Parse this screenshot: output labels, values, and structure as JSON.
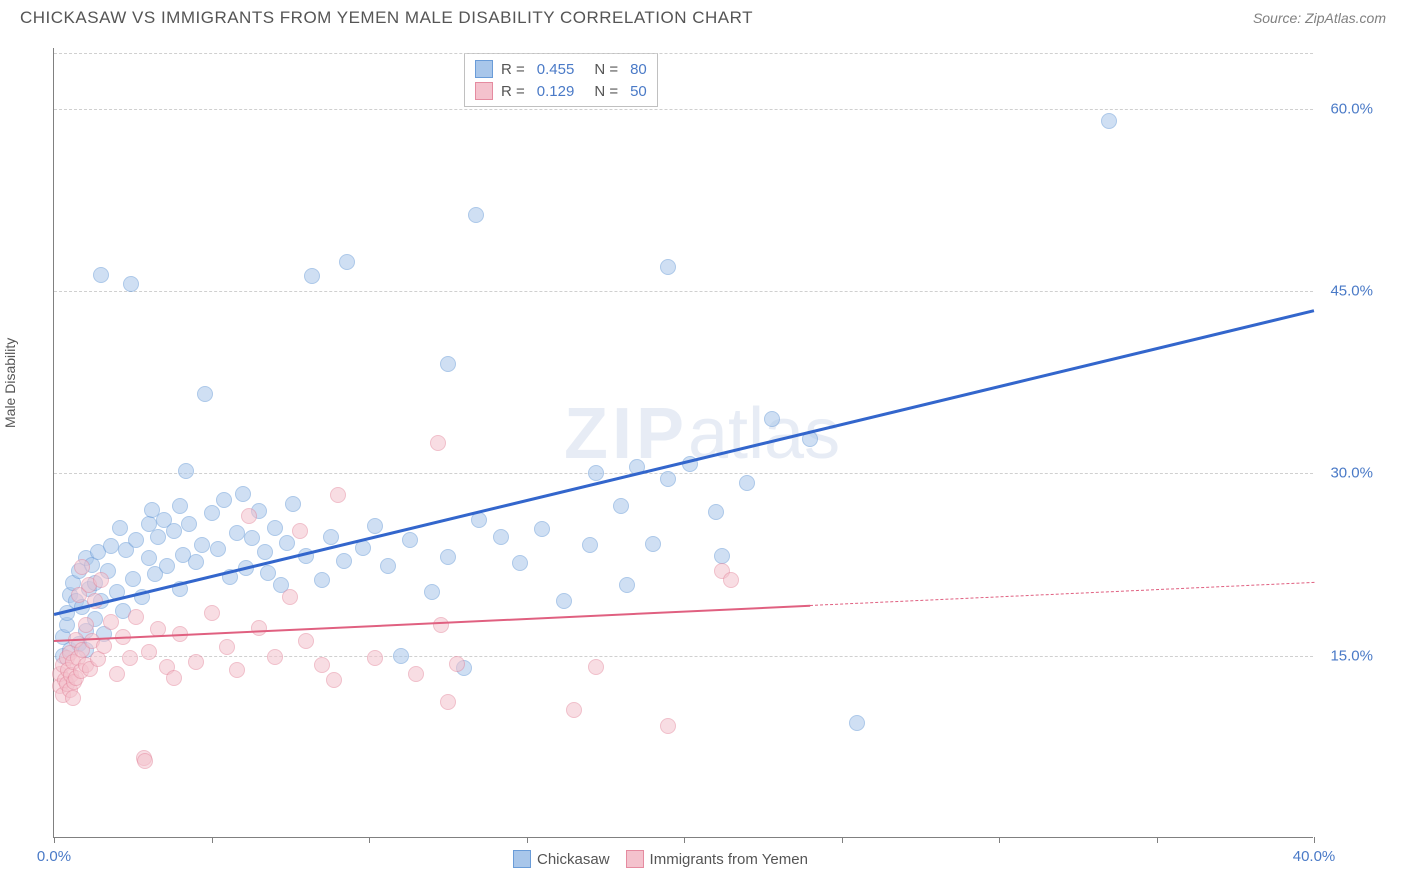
{
  "header": {
    "title": "CHICKASAW VS IMMIGRANTS FROM YEMEN MALE DISABILITY CORRELATION CHART",
    "source": "Source: ZipAtlas.com"
  },
  "y_axis_label": "Male Disability",
  "watermark": {
    "zip": "ZIP",
    "atlas": "atlas"
  },
  "chart": {
    "type": "scatter",
    "background_color": "#ffffff",
    "grid_color": "#d0d0d0",
    "axis_color": "#808080",
    "tick_label_color": "#4a7ac7",
    "tick_fontsize": 15,
    "xlim": [
      0,
      40
    ],
    "ylim": [
      0,
      65
    ],
    "x_ticks": [
      0,
      5,
      10,
      15,
      20,
      25,
      30,
      35,
      40
    ],
    "x_tick_labels": {
      "0": "0.0%",
      "40": "40.0%"
    },
    "y_gridlines": [
      15,
      30,
      45,
      60
    ],
    "y_tick_labels": {
      "15": "15.0%",
      "30": "30.0%",
      "45": "45.0%",
      "60": "60.0%"
    },
    "marker_radius": 8,
    "marker_opacity": 0.55,
    "series": [
      {
        "name": "Chickasaw",
        "marker_fill": "#a8c6ea",
        "marker_stroke": "#6a9cd8",
        "trend_color": "#3366cc",
        "trend_width": 2.5,
        "R": "0.455",
        "N": "80",
        "trend": {
          "x0": 0,
          "y0": 18.5,
          "x1": 40,
          "y1": 43.5
        },
        "points": [
          [
            0.3,
            16.5
          ],
          [
            0.3,
            15
          ],
          [
            0.4,
            17.5
          ],
          [
            0.4,
            18.5
          ],
          [
            0.5,
            20
          ],
          [
            0.5,
            15.5
          ],
          [
            0.6,
            21
          ],
          [
            0.7,
            19.5
          ],
          [
            0.8,
            16
          ],
          [
            0.8,
            22
          ],
          [
            0.9,
            19
          ],
          [
            1.0,
            17
          ],
          [
            1.0,
            23
          ],
          [
            1.0,
            15.5
          ],
          [
            1.1,
            20.5
          ],
          [
            1.2,
            22.5
          ],
          [
            1.3,
            18
          ],
          [
            1.3,
            21
          ],
          [
            1.4,
            23.5
          ],
          [
            1.5,
            19.5
          ],
          [
            1.5,
            46.3
          ],
          [
            1.6,
            16.8
          ],
          [
            1.7,
            22
          ],
          [
            1.8,
            24
          ],
          [
            2.0,
            20.2
          ],
          [
            2.1,
            25.5
          ],
          [
            2.2,
            18.7
          ],
          [
            2.3,
            23.7
          ],
          [
            2.45,
            45.6
          ],
          [
            2.5,
            21.3
          ],
          [
            2.6,
            24.5
          ],
          [
            2.8,
            19.8
          ],
          [
            3.0,
            25.8
          ],
          [
            3.0,
            23
          ],
          [
            3.1,
            27
          ],
          [
            3.2,
            21.7
          ],
          [
            3.3,
            24.8
          ],
          [
            3.5,
            26.2
          ],
          [
            3.6,
            22.4
          ],
          [
            3.8,
            25.3
          ],
          [
            4.0,
            27.3
          ],
          [
            4.0,
            20.5
          ],
          [
            4.1,
            23.3
          ],
          [
            4.2,
            30.2
          ],
          [
            4.3,
            25.8
          ],
          [
            4.5,
            22.7
          ],
          [
            4.7,
            24.1
          ],
          [
            4.8,
            36.5
          ],
          [
            5.0,
            26.7
          ],
          [
            5.2,
            23.8
          ],
          [
            5.4,
            27.8
          ],
          [
            5.6,
            21.5
          ],
          [
            5.8,
            25.1
          ],
          [
            6.0,
            28.3
          ],
          [
            6.1,
            22.2
          ],
          [
            6.3,
            24.7
          ],
          [
            6.5,
            26.9
          ],
          [
            6.7,
            23.5
          ],
          [
            6.8,
            21.8
          ],
          [
            7.0,
            25.5
          ],
          [
            7.2,
            20.8
          ],
          [
            7.4,
            24.3
          ],
          [
            7.6,
            27.5
          ],
          [
            8.0,
            23.2
          ],
          [
            8.2,
            46.2
          ],
          [
            8.5,
            21.2
          ],
          [
            8.8,
            24.8
          ],
          [
            9.2,
            22.8
          ],
          [
            9.3,
            47.4
          ],
          [
            9.8,
            23.9
          ],
          [
            10.2,
            25.7
          ],
          [
            10.6,
            22.4
          ],
          [
            11.0,
            15
          ],
          [
            11.3,
            24.5
          ],
          [
            12.0,
            20.2
          ],
          [
            12.5,
            23.1
          ],
          [
            12.5,
            39
          ],
          [
            13.0,
            14
          ],
          [
            13.4,
            51.3
          ],
          [
            13.5,
            26.2
          ],
          [
            14.2,
            24.8
          ],
          [
            14.8,
            22.6
          ],
          [
            15.5,
            25.4
          ],
          [
            16.2,
            19.5
          ],
          [
            17.0,
            24.1
          ],
          [
            17.2,
            30
          ],
          [
            18.0,
            27.3
          ],
          [
            18.2,
            20.8
          ],
          [
            18.5,
            30.5
          ],
          [
            19.0,
            24.2
          ],
          [
            19.5,
            29.5
          ],
          [
            19.5,
            47
          ],
          [
            20.2,
            30.8
          ],
          [
            21.0,
            26.8
          ],
          [
            21.2,
            23.2
          ],
          [
            22.0,
            29.2
          ],
          [
            22.8,
            34.5
          ],
          [
            24.0,
            32.8
          ],
          [
            25.5,
            9.5
          ],
          [
            33.5,
            59
          ]
        ]
      },
      {
        "name": "Immigrants from Yemen",
        "marker_fill": "#f4c2cd",
        "marker_stroke": "#e58ba0",
        "trend_color": "#e06080",
        "trend_width": 2,
        "R": "0.129",
        "N": "50",
        "trend_solid": {
          "x0": 0,
          "y0": 16.3,
          "x1": 24,
          "y1": 19.2
        },
        "trend_dash": {
          "x0": 24,
          "y0": 19.2,
          "x1": 40,
          "y1": 21.1
        },
        "points": [
          [
            0.2,
            12.5
          ],
          [
            0.2,
            13.5
          ],
          [
            0.3,
            14.2
          ],
          [
            0.3,
            11.8
          ],
          [
            0.35,
            13
          ],
          [
            0.4,
            12.7
          ],
          [
            0.4,
            14.8
          ],
          [
            0.45,
            13.8
          ],
          [
            0.5,
            12.2
          ],
          [
            0.5,
            15.2
          ],
          [
            0.55,
            13.4
          ],
          [
            0.6,
            11.5
          ],
          [
            0.6,
            14.5
          ],
          [
            0.65,
            12.8
          ],
          [
            0.7,
            16.3
          ],
          [
            0.7,
            13.2
          ],
          [
            0.75,
            14.8
          ],
          [
            0.8,
            20
          ],
          [
            0.85,
            13.7
          ],
          [
            0.9,
            15.5
          ],
          [
            0.9,
            22.3
          ],
          [
            1.0,
            14.2
          ],
          [
            1.0,
            17.5
          ],
          [
            1.1,
            20.8
          ],
          [
            1.15,
            13.9
          ],
          [
            1.2,
            16.2
          ],
          [
            1.3,
            19.5
          ],
          [
            1.4,
            14.7
          ],
          [
            1.5,
            21.2
          ],
          [
            1.6,
            15.8
          ],
          [
            1.8,
            17.8
          ],
          [
            2.0,
            13.5
          ],
          [
            2.2,
            16.5
          ],
          [
            2.4,
            14.8
          ],
          [
            2.6,
            18.2
          ],
          [
            2.85,
            6.6
          ],
          [
            2.9,
            6.3
          ],
          [
            3.0,
            15.3
          ],
          [
            3.3,
            17.2
          ],
          [
            3.6,
            14.1
          ],
          [
            3.8,
            13.2
          ],
          [
            4.0,
            16.8
          ],
          [
            4.5,
            14.5
          ],
          [
            5.0,
            18.5
          ],
          [
            5.5,
            15.7
          ],
          [
            5.8,
            13.8
          ],
          [
            6.2,
            26.5
          ],
          [
            6.5,
            17.3
          ],
          [
            7.0,
            14.9
          ],
          [
            7.5,
            19.8
          ],
          [
            7.8,
            25.3
          ],
          [
            8.0,
            16.2
          ],
          [
            8.5,
            14.2
          ],
          [
            8.9,
            13
          ],
          [
            9.0,
            28.2
          ],
          [
            10.2,
            14.8
          ],
          [
            11.5,
            13.5
          ],
          [
            12.2,
            32.5
          ],
          [
            12.3,
            17.5
          ],
          [
            12.5,
            11.2
          ],
          [
            12.8,
            14.3
          ],
          [
            16.5,
            10.5
          ],
          [
            17.2,
            14.1
          ],
          [
            19.5,
            9.2
          ],
          [
            21.2,
            22.0
          ],
          [
            21.5,
            21.2
          ]
        ]
      }
    ]
  },
  "legend_top": {
    "R_label": "R =",
    "N_label": "N ="
  },
  "legend_bottom": {
    "items": [
      "Chickasaw",
      "Immigrants from Yemen"
    ]
  }
}
